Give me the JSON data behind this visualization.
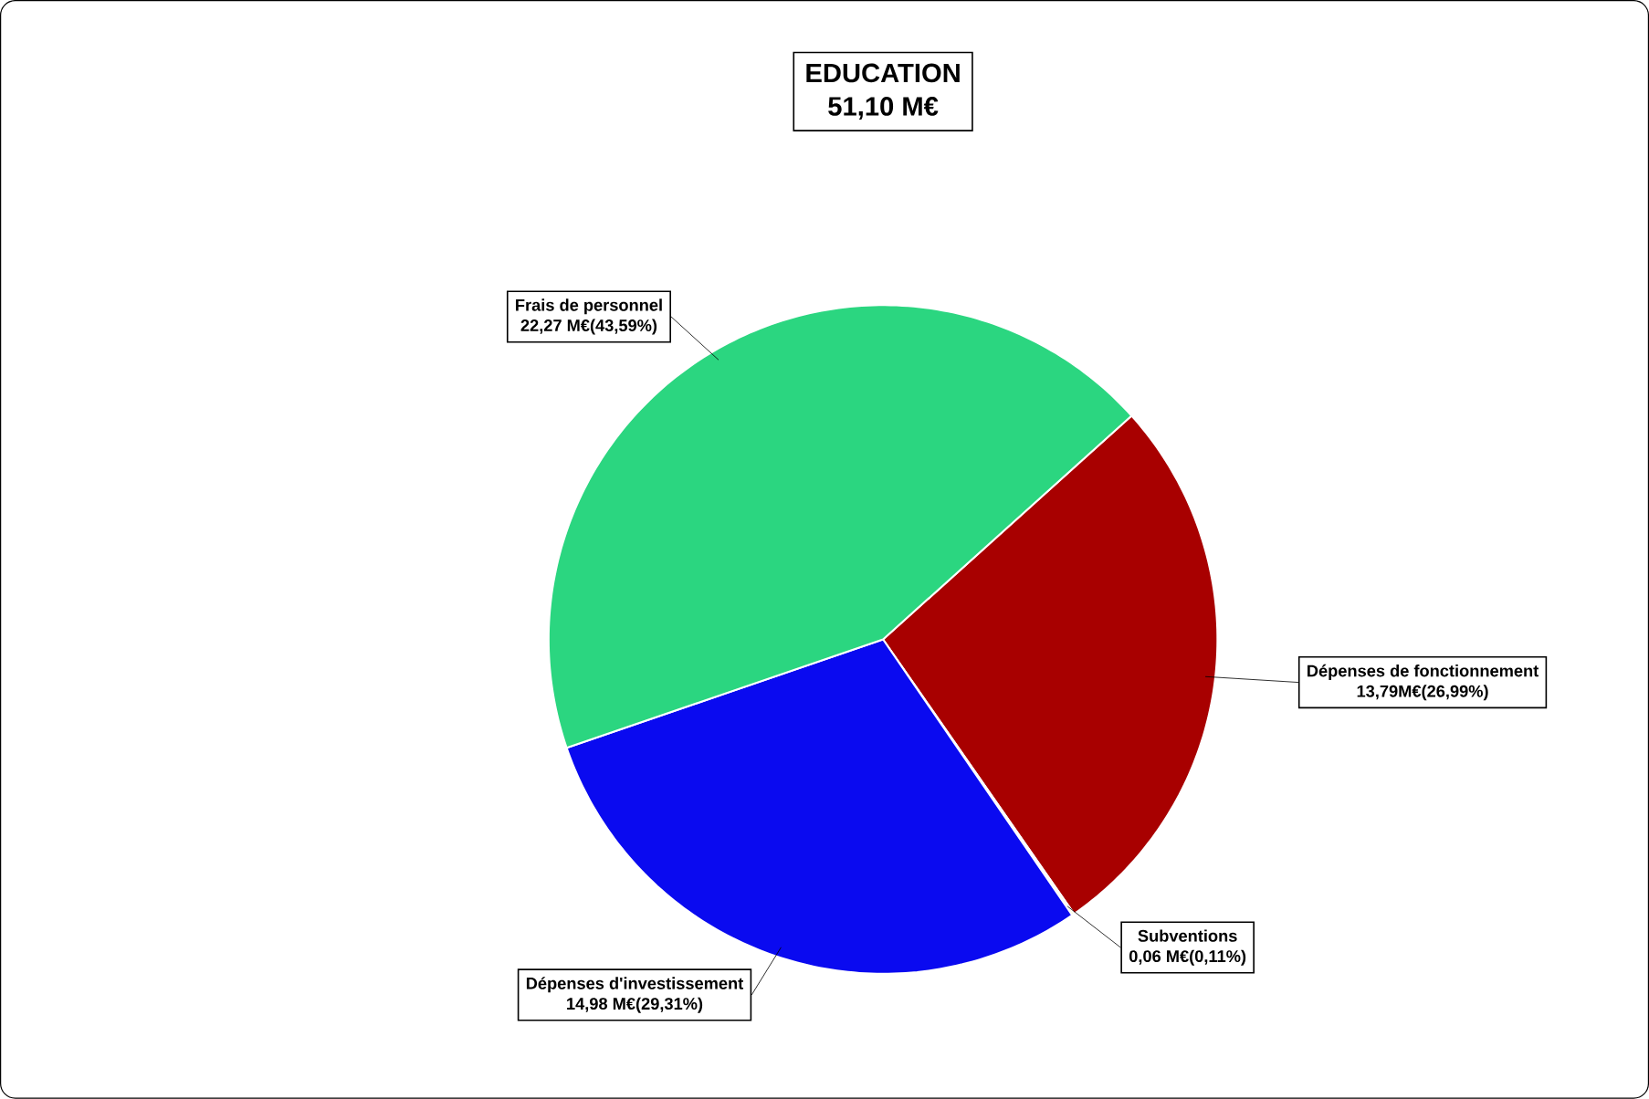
{
  "chart_data": {
    "type": "pie",
    "title": "EDUCATION",
    "subtitle": "51,10 M€",
    "categories": [
      "Dépenses de fonctionnement",
      "Subventions",
      "Dépenses d'investissement",
      "Frais de personnel"
    ],
    "values": [
      26.99,
      0.11,
      29.31,
      43.59
    ],
    "value_labels": [
      "13,79M€(26,99%)",
      "0,06 M€(0,11%)",
      "14,98 M€(29,31%)",
      "22,27 M€(43,59%)"
    ],
    "colors": [
      "#a80000",
      "#ffff99",
      "#0a0af0",
      "#2bd680"
    ]
  }
}
